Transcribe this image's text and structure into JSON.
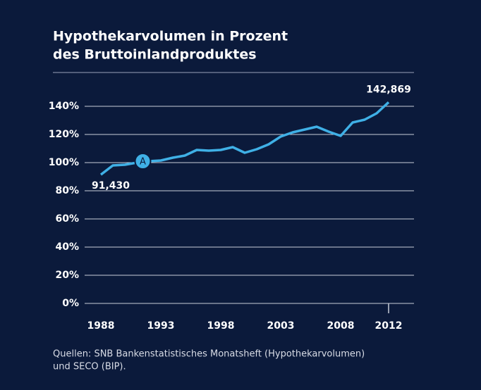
{
  "chart_data": {
    "type": "line",
    "title": [
      "Hypothekarvolumen in Prozent",
      "des Bruttoinlandproduktes"
    ],
    "x": [
      1988,
      1989,
      1990,
      1991,
      1992,
      1993,
      1994,
      1995,
      1996,
      1997,
      1998,
      1999,
      2000,
      2001,
      2002,
      2003,
      2004,
      2005,
      2006,
      2007,
      2008,
      2009,
      2010,
      2011,
      2012
    ],
    "series": [
      {
        "name": "Hypothekarvolumen",
        "color": "#3fb0e6",
        "values": [
          91.43,
          98,
          98.5,
          100,
          101,
          101.5,
          103.5,
          105,
          109,
          108.5,
          109,
          111,
          107,
          109.5,
          113,
          118.5,
          121.5,
          123.5,
          125.5,
          122,
          119,
          128.5,
          130.5,
          135,
          142.869
        ],
        "value_labels": [
          "91,430",
          null,
          null,
          null,
          null,
          null,
          null,
          null,
          null,
          null,
          null,
          null,
          null,
          null,
          null,
          null,
          null,
          null,
          null,
          null,
          null,
          null,
          null,
          null,
          "142,869"
        ]
      }
    ],
    "xlim": [
      1988,
      2012
    ],
    "xticks": [
      1988,
      1993,
      1998,
      2003,
      2008,
      2012
    ],
    "ylim": [
      0,
      140
    ],
    "yticks": [
      {
        "value": 0,
        "label": "0%"
      },
      {
        "value": 20,
        "label": "20%"
      },
      {
        "value": 40,
        "label": "40%"
      },
      {
        "value": 60,
        "label": "60%"
      },
      {
        "value": 80,
        "label": "80%"
      },
      {
        "value": 100,
        "label": "100%"
      },
      {
        "value": 120,
        "label": "120%"
      },
      {
        "value": 140,
        "label": "140%"
      }
    ],
    "grid": true,
    "annotations": [
      {
        "text": "A",
        "x": 1991.5,
        "y": 101
      }
    ],
    "source": [
      "Quellen: SNB Bankenstatistisches Monatsheft (Hypothekarvolumen)",
      "und SECO (BIP)."
    ]
  }
}
